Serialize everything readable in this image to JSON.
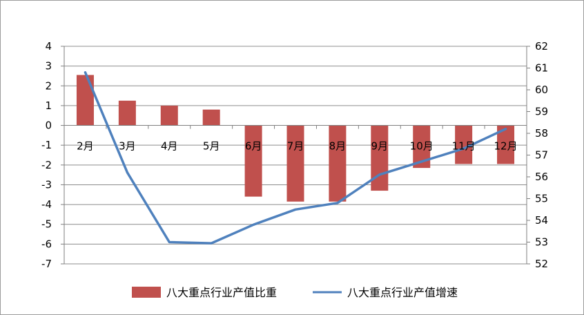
{
  "chart_data": {
    "type": "bar+line",
    "categories": [
      "2月",
      "3月",
      "4月",
      "5月",
      "6月",
      "7月",
      "8月",
      "9月",
      "10月",
      "11月",
      "12月"
    ],
    "series": [
      {
        "name": "八大重点行业产值比重",
        "type": "bar",
        "axis": "left",
        "color": "#C0504D",
        "values": [
          2.55,
          1.25,
          1.0,
          0.8,
          -3.6,
          -3.85,
          -3.85,
          -3.3,
          -2.15,
          -1.95,
          -1.95
        ]
      },
      {
        "name": "八大重点行业产值增速",
        "type": "line",
        "axis": "right",
        "color": "#4F81BD",
        "values": [
          60.8,
          56.2,
          53.0,
          52.95,
          53.8,
          54.5,
          54.8,
          56.1,
          56.7,
          57.3,
          58.2
        ]
      }
    ],
    "y_left": {
      "min": -7,
      "max": 4,
      "step": 1,
      "ticks": [
        "4",
        "3",
        "2",
        "1",
        "0",
        "-1",
        "-2",
        "-3",
        "-4",
        "-5",
        "-6",
        "-7"
      ]
    },
    "y_right": {
      "min": 52,
      "max": 62,
      "step": 1,
      "ticks": [
        "62",
        "61",
        "60",
        "59",
        "58",
        "57",
        "56",
        "55",
        "54",
        "53",
        "52"
      ]
    },
    "title": "",
    "xlabel": "",
    "ylabel": "",
    "grid": true,
    "legend_position": "bottom"
  }
}
